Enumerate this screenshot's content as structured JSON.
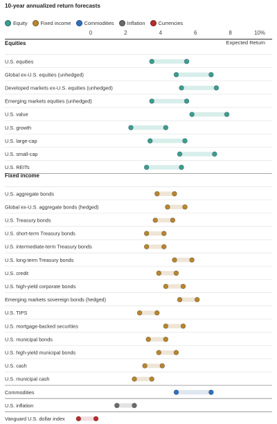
{
  "chart_data": {
    "type": "range-dot",
    "title": "10-year annualized return forecasts",
    "axis_label": "Expected Return",
    "xlim": [
      0,
      10
    ],
    "ticks": [
      "0",
      "2",
      "4",
      "6",
      "8",
      "10%"
    ],
    "tick_values": [
      0,
      2,
      4,
      6,
      8,
      10
    ],
    "legend": [
      {
        "key": "equity",
        "label": "Equity",
        "color": "#3a9e92"
      },
      {
        "key": "fixed",
        "label": "Fixed income",
        "color": "#b8862f"
      },
      {
        "key": "commodities",
        "label": "Commodities",
        "color": "#2f6fbf"
      },
      {
        "key": "inflation",
        "label": "Inflation",
        "color": "#6b6b6b"
      },
      {
        "key": "currencies",
        "label": "Currencies",
        "color": "#bb2b2b"
      }
    ],
    "band_colors": {
      "equity": "#d7eeea",
      "fixed": "#efe5d6",
      "commodities": "#dfe6f0",
      "inflation": "#e3e3e3",
      "currencies": "#f1dede"
    },
    "sections": [
      {
        "header": "Equities",
        "rows": [
          {
            "label": "U.S. equities",
            "category": "equity",
            "low": 3.5,
            "high": 5.5
          },
          {
            "label": "Global ex-U.S. equities (unhedged)",
            "category": "equity",
            "low": 4.9,
            "high": 6.9
          },
          {
            "label": "Developed markets ex-U.S. equities (unhedged)",
            "category": "equity",
            "low": 5.2,
            "high": 7.2
          },
          {
            "label": "Emerging markets equities (unhedged)",
            "category": "equity",
            "low": 3.5,
            "high": 5.5
          },
          {
            "label": "U.S. value",
            "category": "equity",
            "low": 5.8,
            "high": 7.8
          },
          {
            "label": "U.S. growth",
            "category": "equity",
            "low": 2.3,
            "high": 4.3
          },
          {
            "label": "U.S. large-cap",
            "category": "equity",
            "low": 3.4,
            "high": 5.4
          },
          {
            "label": "U.S. small-cap",
            "category": "equity",
            "low": 5.1,
            "high": 7.1
          },
          {
            "label": "U.S. REITs",
            "category": "equity",
            "low": 3.2,
            "high": 5.2
          }
        ]
      },
      {
        "header": "Fixed income",
        "rows": [
          {
            "label": "U.S. aggregate bonds",
            "category": "fixed",
            "low": 3.8,
            "high": 4.8
          },
          {
            "label": "Global ex-U.S. aggregate bonds (hedged)",
            "category": "fixed",
            "low": 4.4,
            "high": 5.4
          },
          {
            "label": "U.S. Treasury bonds",
            "category": "fixed",
            "low": 3.7,
            "high": 4.7
          },
          {
            "label": "U.S. short-term Treasury bonds",
            "category": "fixed",
            "low": 3.2,
            "high": 4.2
          },
          {
            "label": "U.S. intermediate-term Treasury bonds",
            "category": "fixed",
            "low": 3.2,
            "high": 4.2
          },
          {
            "label": "U.S. long-term Treasury bonds",
            "category": "fixed",
            "low": 4.8,
            "high": 5.8
          },
          {
            "label": "U.S. credit",
            "category": "fixed",
            "low": 3.9,
            "high": 4.9
          },
          {
            "label": "U.S. high-yield corporate bonds",
            "category": "fixed",
            "low": 4.3,
            "high": 5.3
          },
          {
            "label": "Emerging markets sovereign bonds (hedged)",
            "category": "fixed",
            "low": 5.1,
            "high": 6.1
          },
          {
            "label": "U.S. TIPS",
            "category": "fixed",
            "low": 2.8,
            "high": 3.8
          },
          {
            "label": "U.S. mortgage-backed securities",
            "category": "fixed",
            "low": 4.3,
            "high": 5.3
          },
          {
            "label": "U.S. municipal bonds",
            "category": "fixed",
            "low": 3.3,
            "high": 4.3
          },
          {
            "label": "U.S. high-yield municipal bonds",
            "category": "fixed",
            "low": 3.9,
            "high": 4.9
          },
          {
            "label": "U.S. cash",
            "category": "fixed",
            "low": 3.1,
            "high": 4.1
          },
          {
            "label": "U.S. municipal cash",
            "category": "fixed",
            "low": 2.5,
            "high": 3.5
          }
        ]
      },
      {
        "header": "",
        "rows": [
          {
            "label": "Commodities",
            "category": "commodities",
            "low": 4.9,
            "high": 6.9
          }
        ]
      },
      {
        "header": "",
        "rows": [
          {
            "label": "U.S. inflation",
            "category": "inflation",
            "low": 1.5,
            "high": 2.5
          }
        ]
      },
      {
        "header": "",
        "rows": [
          {
            "label": "Vanguard U.S. dollar index",
            "category": "currencies",
            "low": -0.7,
            "high": 0.3
          }
        ]
      }
    ]
  }
}
